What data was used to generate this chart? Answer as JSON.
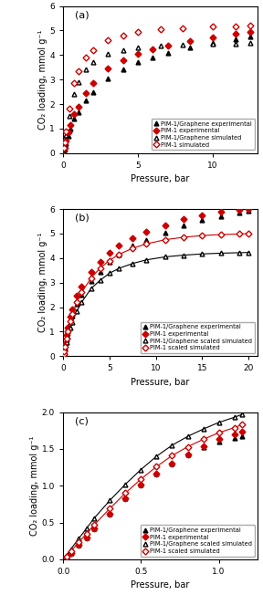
{
  "panel_a": {
    "label": "(a)",
    "xlim": [
      0,
      13
    ],
    "ylim": [
      0,
      6
    ],
    "xticks": [
      0,
      5,
      10
    ],
    "yticks": [
      0,
      1,
      2,
      3,
      4,
      5,
      6
    ],
    "xlabel": "Pressure, bar",
    "ylabel": "CO₂ loading, mmol g⁻¹",
    "series": {
      "pim1_graph_exp": {
        "x": [
          0.05,
          0.1,
          0.2,
          0.35,
          0.5,
          0.75,
          1.0,
          1.5,
          2.0,
          3.0,
          4.0,
          5.0,
          6.0,
          7.0,
          8.5,
          10.0,
          11.5,
          12.5
        ],
        "y": [
          0.08,
          0.18,
          0.4,
          0.7,
          1.0,
          1.4,
          1.65,
          2.15,
          2.5,
          3.05,
          3.4,
          3.7,
          3.9,
          4.1,
          4.3,
          4.5,
          4.65,
          4.75
        ],
        "color": "black",
        "marker": "^",
        "filled": true,
        "label": "PIM-1/Graphene experimental",
        "line": true
      },
      "pim1_exp": {
        "x": [
          0.05,
          0.1,
          0.2,
          0.35,
          0.5,
          0.75,
          1.0,
          1.5,
          2.0,
          3.0,
          4.0,
          5.0,
          6.0,
          7.0,
          8.5,
          10.0,
          11.5,
          12.5
        ],
        "y": [
          0.1,
          0.22,
          0.5,
          0.85,
          1.15,
          1.6,
          1.9,
          2.45,
          2.85,
          3.45,
          3.8,
          4.05,
          4.25,
          4.4,
          4.58,
          4.72,
          4.85,
          4.95
        ],
        "color": "#cc0000",
        "marker": "D",
        "filled": true,
        "label": "PIM-1 experimental",
        "line": true
      },
      "pim1_graph_sim": {
        "x": [
          0.05,
          0.1,
          0.2,
          0.4,
          0.75,
          1.0,
          1.5,
          2.0,
          3.0,
          4.0,
          5.0,
          6.5,
          8.0,
          10.0,
          11.5,
          12.5
        ],
        "y": [
          0.15,
          0.35,
          0.75,
          1.5,
          2.4,
          2.9,
          3.4,
          3.7,
          4.05,
          4.2,
          4.3,
          4.38,
          4.42,
          4.45,
          4.47,
          4.48
        ],
        "color": "black",
        "marker": "^",
        "filled": false,
        "label": "PIM-1/Graphene simulated",
        "line": false
      },
      "pim1_sim": {
        "x": [
          0.05,
          0.1,
          0.2,
          0.4,
          0.75,
          1.0,
          1.5,
          2.0,
          3.0,
          4.0,
          5.0,
          6.5,
          8.0,
          10.0,
          11.5,
          12.5
        ],
        "y": [
          0.2,
          0.45,
          0.9,
          1.8,
          2.85,
          3.35,
          3.9,
          4.2,
          4.6,
          4.8,
          4.95,
          5.05,
          5.1,
          5.15,
          5.18,
          5.2
        ],
        "color": "#cc0000",
        "marker": "D",
        "filled": false,
        "label": "PIM-1 simulated",
        "line": false
      }
    }
  },
  "panel_b": {
    "label": "(b)",
    "xlim": [
      0,
      21
    ],
    "ylim": [
      0,
      6
    ],
    "xticks": [
      0,
      5,
      10,
      15,
      20
    ],
    "yticks": [
      0,
      1,
      2,
      3,
      4,
      5,
      6
    ],
    "xlabel": "Pressure, bar",
    "ylabel": "CO₂ loading, mmol g⁻¹",
    "series": {
      "pim1_graph_exp": {
        "x": [
          0.05,
          0.1,
          0.2,
          0.35,
          0.5,
          0.75,
          1.0,
          1.5,
          2.0,
          3.0,
          4.0,
          5.0,
          6.0,
          7.5,
          9.0,
          11.0,
          13.0,
          15.0,
          17.0,
          19.0,
          20.0
        ],
        "y": [
          0.08,
          0.18,
          0.4,
          0.7,
          1.0,
          1.4,
          1.65,
          2.15,
          2.5,
          3.05,
          3.45,
          3.85,
          4.15,
          4.5,
          4.75,
          5.05,
          5.35,
          5.55,
          5.7,
          5.85,
          5.92
        ],
        "color": "black",
        "marker": "^",
        "filled": true,
        "label": "PIM-1/Graphene experimental",
        "line": true
      },
      "pim1_exp": {
        "x": [
          0.05,
          0.1,
          0.2,
          0.35,
          0.5,
          0.75,
          1.0,
          1.5,
          2.0,
          3.0,
          4.0,
          5.0,
          6.0,
          7.5,
          9.0,
          11.0,
          13.0,
          15.0,
          17.0,
          19.0,
          20.0
        ],
        "y": [
          0.1,
          0.22,
          0.5,
          0.85,
          1.15,
          1.6,
          1.9,
          2.45,
          2.85,
          3.45,
          3.85,
          4.2,
          4.5,
          4.82,
          5.08,
          5.35,
          5.6,
          5.75,
          5.88,
          5.97,
          6.02
        ],
        "color": "#cc0000",
        "marker": "D",
        "filled": true,
        "label": "PIM-1 experimental",
        "line": true
      },
      "pim1_graph_sim": {
        "x": [
          0.05,
          0.1,
          0.2,
          0.35,
          0.5,
          0.75,
          1.0,
          1.5,
          2.0,
          3.0,
          4.0,
          5.0,
          6.0,
          7.5,
          9.0,
          11.0,
          13.0,
          15.0,
          17.0,
          19.0,
          20.0
        ],
        "y": [
          0.06,
          0.15,
          0.32,
          0.57,
          0.8,
          1.15,
          1.4,
          1.85,
          2.2,
          2.75,
          3.1,
          3.38,
          3.58,
          3.78,
          3.93,
          4.05,
          4.12,
          4.17,
          4.2,
          4.22,
          4.23
        ],
        "color": "black",
        "marker": "^",
        "filled": false,
        "label": "PIM-1/Graphene scaled simulated",
        "line": true
      },
      "pim1_sim": {
        "x": [
          0.05,
          0.1,
          0.2,
          0.35,
          0.5,
          0.75,
          1.0,
          1.5,
          2.0,
          3.0,
          4.0,
          5.0,
          6.0,
          7.5,
          9.0,
          11.0,
          13.0,
          15.0,
          17.0,
          19.0,
          20.0
        ],
        "y": [
          0.08,
          0.18,
          0.4,
          0.72,
          1.0,
          1.42,
          1.72,
          2.2,
          2.6,
          3.18,
          3.6,
          3.9,
          4.15,
          4.4,
          4.58,
          4.75,
          4.85,
          4.92,
          4.96,
          4.98,
          5.0
        ],
        "color": "#cc0000",
        "marker": "D",
        "filled": false,
        "label": "PIM-1 scaled simulated",
        "line": true
      }
    }
  },
  "panel_c": {
    "label": "(c)",
    "xlim": [
      0,
      1.25
    ],
    "ylim": [
      0,
      2
    ],
    "xticks": [
      0,
      0.5,
      1.0
    ],
    "yticks": [
      0,
      0.5,
      1.0,
      1.5,
      2.0
    ],
    "xlabel": "Pressure, bar",
    "ylabel": "CO₂ loading, mmol g⁻¹",
    "series": {
      "pim1_graph_exp": {
        "x": [
          0.02,
          0.05,
          0.1,
          0.15,
          0.2,
          0.3,
          0.4,
          0.5,
          0.6,
          0.7,
          0.8,
          0.9,
          1.0,
          1.1,
          1.15
        ],
        "y": [
          0.03,
          0.09,
          0.2,
          0.3,
          0.42,
          0.62,
          0.83,
          1.01,
          1.17,
          1.3,
          1.42,
          1.52,
          1.6,
          1.65,
          1.67
        ],
        "color": "black",
        "marker": "^",
        "filled": true,
        "label": "PIM-1/Graphene experimental",
        "line": true
      },
      "pim1_exp": {
        "x": [
          0.02,
          0.05,
          0.1,
          0.15,
          0.2,
          0.3,
          0.4,
          0.5,
          0.6,
          0.7,
          0.8,
          0.9,
          1.0,
          1.1,
          1.15
        ],
        "y": [
          0.03,
          0.09,
          0.2,
          0.3,
          0.42,
          0.62,
          0.83,
          1.01,
          1.17,
          1.3,
          1.43,
          1.54,
          1.63,
          1.7,
          1.73
        ],
        "color": "#cc0000",
        "marker": "D",
        "filled": true,
        "label": "PIM-1 experimental",
        "line": true
      },
      "pim1_graph_sim": {
        "x": [
          0.02,
          0.05,
          0.1,
          0.15,
          0.2,
          0.3,
          0.4,
          0.5,
          0.6,
          0.7,
          0.8,
          0.9,
          1.0,
          1.1,
          1.15
        ],
        "y": [
          0.05,
          0.14,
          0.28,
          0.42,
          0.56,
          0.8,
          1.02,
          1.22,
          1.4,
          1.55,
          1.67,
          1.77,
          1.86,
          1.93,
          1.97
        ],
        "color": "black",
        "marker": "^",
        "filled": false,
        "label": "PIM-1/Graphene scaled simulated",
        "line": true
      },
      "pim1_sim": {
        "x": [
          0.02,
          0.05,
          0.1,
          0.15,
          0.2,
          0.3,
          0.4,
          0.5,
          0.6,
          0.7,
          0.8,
          0.9,
          1.0,
          1.1,
          1.15
        ],
        "y": [
          0.04,
          0.11,
          0.23,
          0.35,
          0.47,
          0.69,
          0.9,
          1.09,
          1.26,
          1.41,
          1.53,
          1.63,
          1.72,
          1.79,
          1.83
        ],
        "color": "#cc0000",
        "marker": "D",
        "filled": false,
        "label": "PIM-1 scaled simulated",
        "line": true
      }
    }
  }
}
